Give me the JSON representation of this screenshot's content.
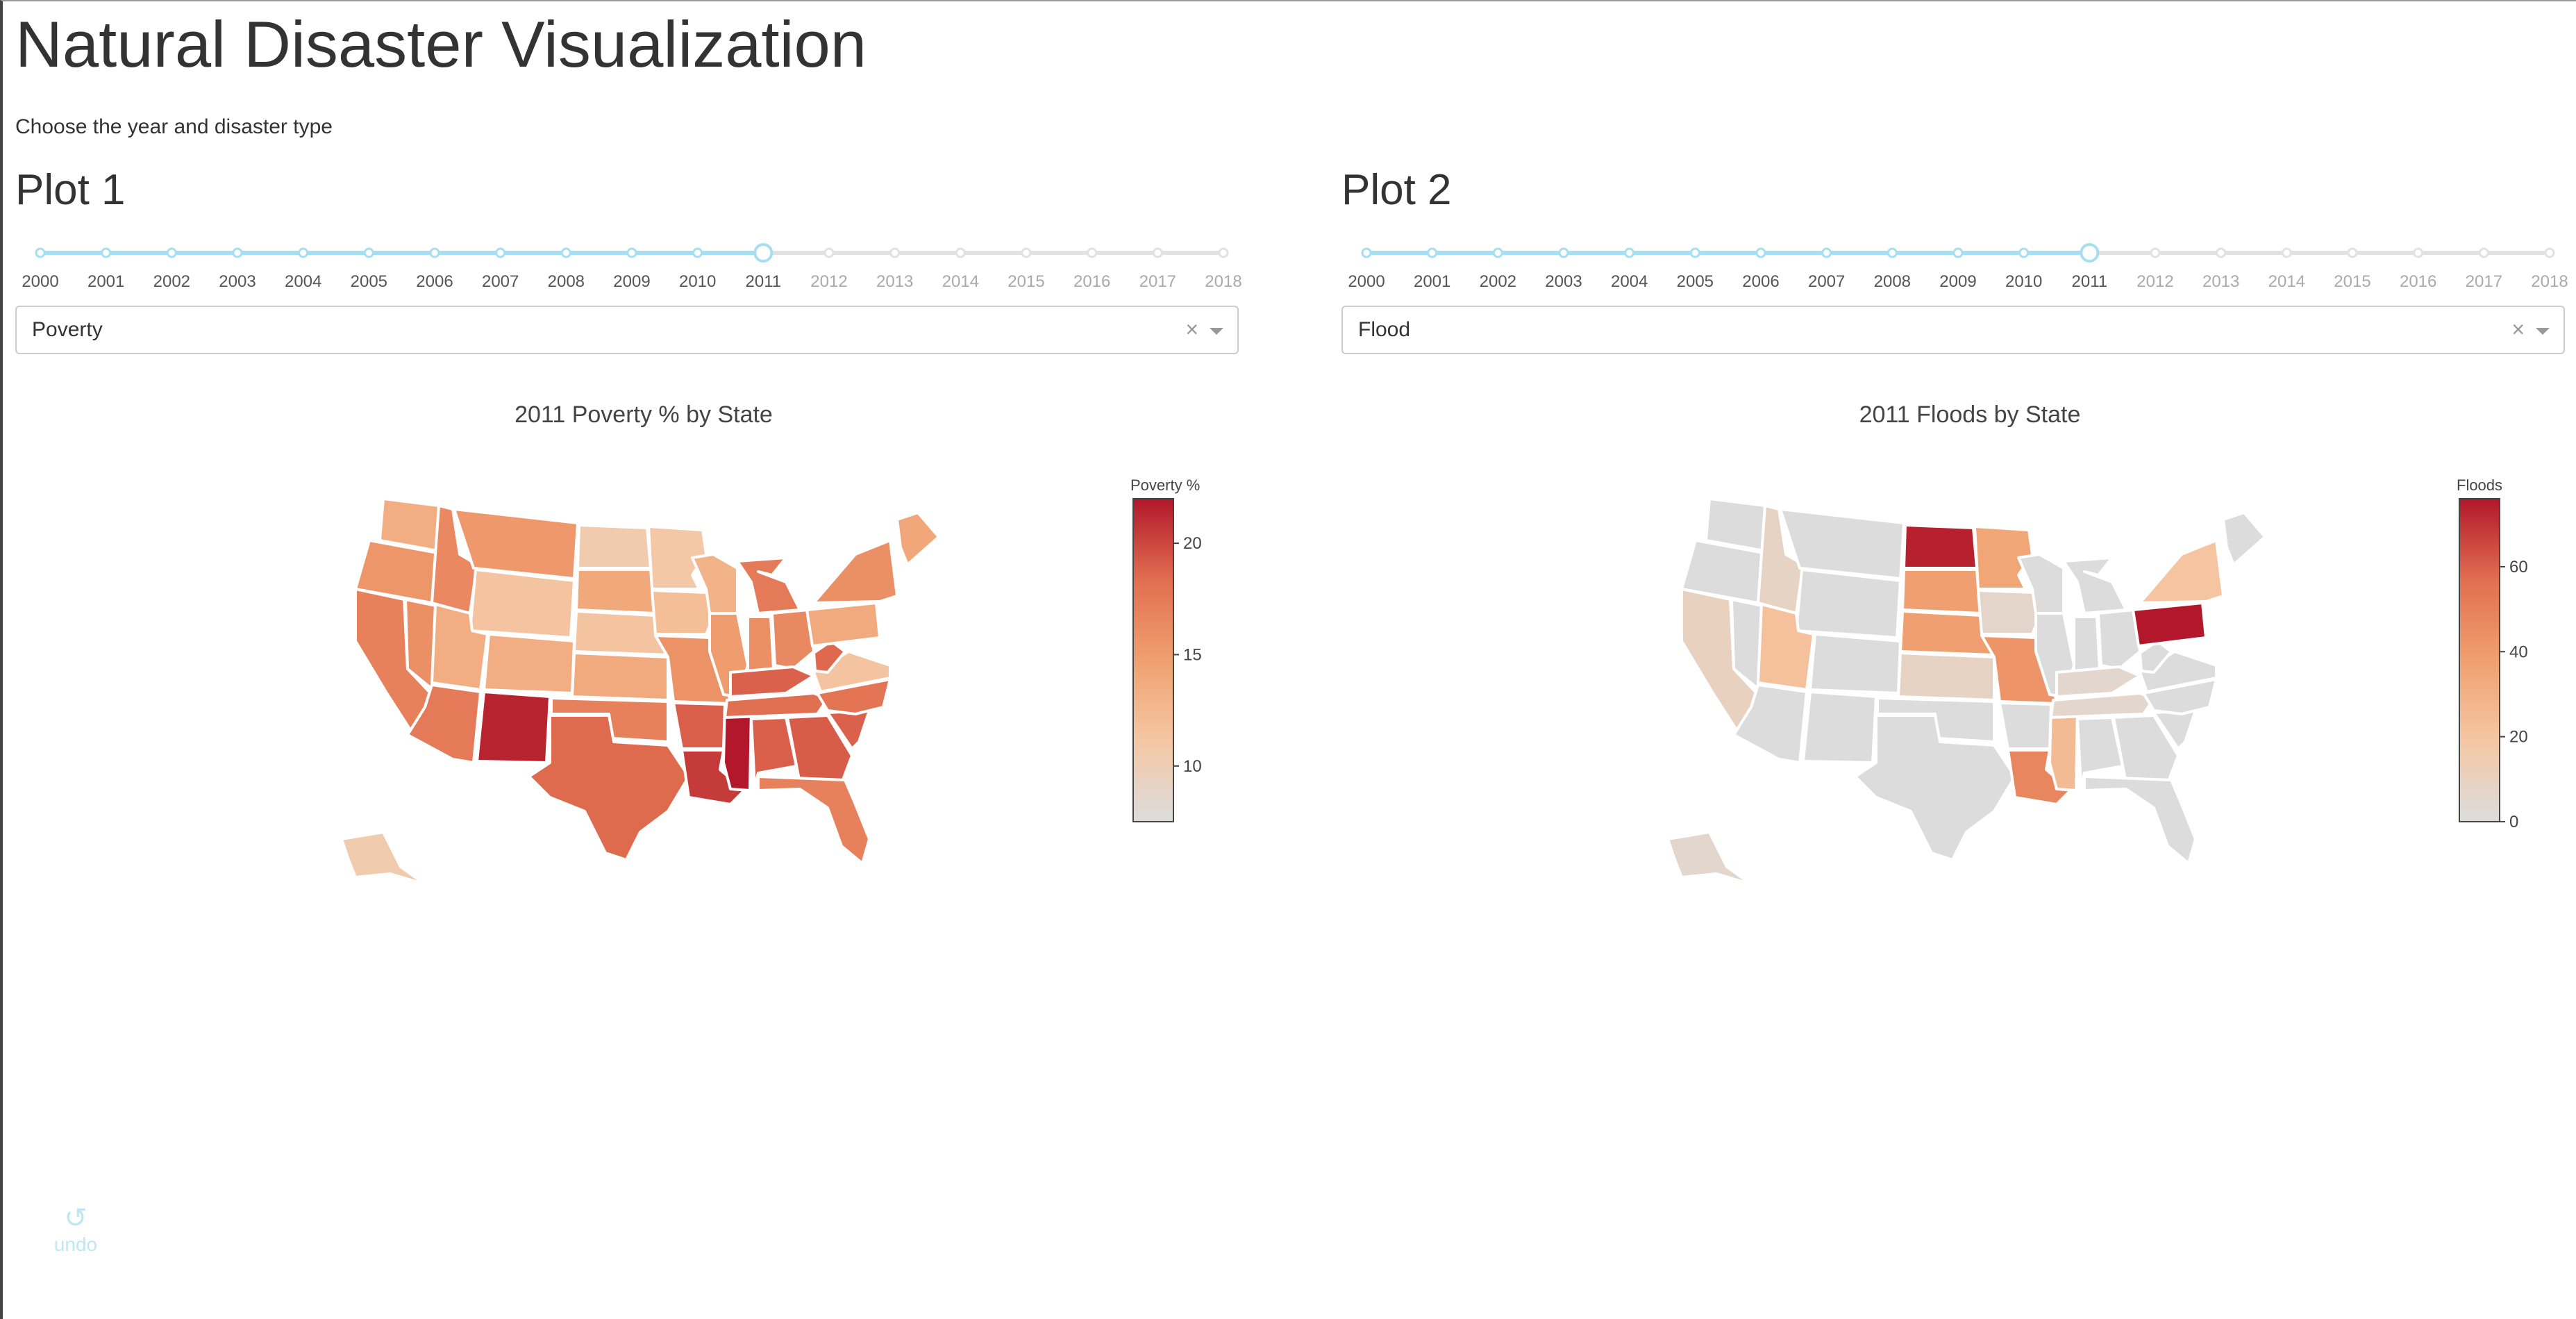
{
  "app": {
    "title": "Natural Disaster Visualization",
    "subtitle": "Choose the year and disaster type"
  },
  "years": [
    "2000",
    "2001",
    "2002",
    "2003",
    "2004",
    "2005",
    "2006",
    "2007",
    "2008",
    "2009",
    "2010",
    "2011",
    "2012",
    "2013",
    "2014",
    "2015",
    "2016",
    "2017",
    "2018"
  ],
  "colors": {
    "slider_active": "#a6dff2",
    "slider_inactive": "#e2e2e2",
    "label_active": "#555555",
    "label_inactive": "#aaaaaa",
    "no_data": "#dcdcdc",
    "colorscale": [
      "#dcdcdc",
      "#f5c7a4",
      "#f0a070",
      "#e16e50",
      "#b2172b"
    ]
  },
  "plot1": {
    "heading": "Plot 1",
    "selected_year": "2011",
    "dropdown_value": "Poverty",
    "clear_icon": "×",
    "chart_data": {
      "type": "choropleth",
      "title": "2011 Poverty % by State",
      "colorbar_title": "Poverty %",
      "range": [
        7.5,
        22
      ],
      "ticks": [
        "10",
        "15",
        "20"
      ],
      "tick_values": [
        10,
        15,
        20
      ],
      "states": {
        "WA": 13.5,
        "OR": 15.5,
        "CA": 17.0,
        "NV": 16.0,
        "ID": 16.5,
        "MT": 15.3,
        "WY": 11.5,
        "UT": 13.5,
        "CO": 13.5,
        "AZ": 17.5,
        "NM": 21.5,
        "ND": 10.5,
        "SD": 13.9,
        "NE": 11.5,
        "KS": 13.8,
        "OK": 17.0,
        "TX": 18.5,
        "MN": 11.0,
        "IA": 12.0,
        "MO": 15.8,
        "AR": 19.0,
        "LA": 20.5,
        "WI": 13.0,
        "IL": 15.0,
        "MS": 22.0,
        "MI": 17.5,
        "IN": 16.0,
        "OH": 16.4,
        "KY": 18.9,
        "TN": 18.3,
        "AL": 19.0,
        "GA": 19.1,
        "FL": 17.0,
        "SC": 18.9,
        "NC": 17.9,
        "VA": 11.5,
        "WV": 18.6,
        "PA": 13.8,
        "NY": 16.0,
        "ME": 14.1,
        "AK": 10.5
      }
    }
  },
  "plot2": {
    "heading": "Plot 2",
    "selected_year": "2011",
    "dropdown_value": "Flood",
    "clear_icon": "×",
    "chart_data": {
      "type": "choropleth",
      "title": "2011 Floods by State",
      "colorbar_title": "Floods",
      "range": [
        0,
        76
      ],
      "ticks": [
        "0",
        "20",
        "40",
        "60"
      ],
      "tick_values": [
        0,
        20,
        40,
        60
      ],
      "states": {
        "WA": 0,
        "OR": 0,
        "CA": 10,
        "NV": 0,
        "ID": 8,
        "MT": 0,
        "WY": 0,
        "UT": 22,
        "CO": 0,
        "AZ": 0,
        "NM": 0,
        "ND": 74,
        "SD": 38,
        "NE": 38,
        "KS": 8,
        "OK": 0,
        "TX": 0,
        "MN": 35,
        "IA": 6,
        "MO": 42,
        "AR": 0,
        "LA": 48,
        "WI": 0,
        "IL": 0,
        "MS": 25,
        "MI": 0,
        "IN": 0,
        "OH": 0,
        "KY": 5,
        "TN": 5,
        "AL": 0,
        "GA": 0,
        "FL": 0,
        "SC": 0,
        "NC": 0,
        "VA": 0,
        "WV": 0,
        "PA": 76,
        "NY": 20,
        "ME": 0,
        "AK": 5
      }
    }
  },
  "undo": {
    "icon": "undo-icon",
    "label": "undo"
  }
}
